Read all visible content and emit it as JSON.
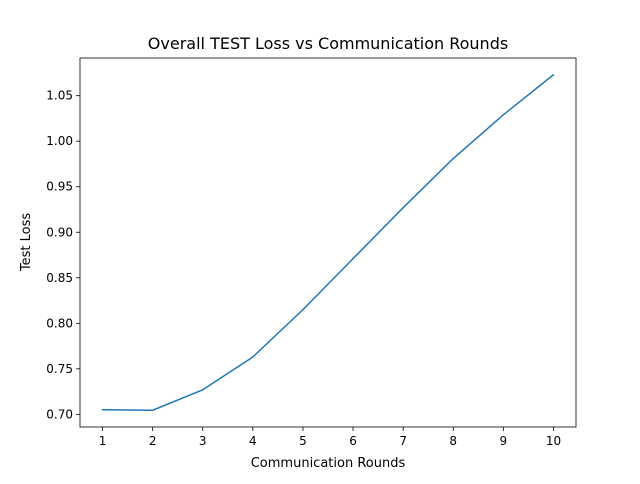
{
  "chart_data": {
    "type": "line",
    "title": "Overall TEST Loss vs Communication Rounds",
    "xlabel": "Communication Rounds",
    "ylabel": "Test Loss",
    "x": [
      1,
      2,
      3,
      4,
      5,
      6,
      7,
      8,
      9,
      10
    ],
    "series": [
      {
        "values": [
          0.705,
          0.7045,
          0.727,
          0.763,
          0.815,
          0.871,
          0.927,
          0.981,
          1.029,
          1.073
        ],
        "color": "#1f77b4"
      }
    ],
    "xticks": [
      "1",
      "2",
      "3",
      "4",
      "5",
      "6",
      "7",
      "8",
      "9",
      "10"
    ],
    "yticks": [
      "0.70",
      "0.75",
      "0.80",
      "0.85",
      "0.90",
      "0.95",
      "1.00",
      "1.05"
    ],
    "xlim": [
      0.55,
      10.45
    ],
    "ylim": [
      0.6861,
      1.0914
    ],
    "grid": false,
    "legend": "none"
  }
}
